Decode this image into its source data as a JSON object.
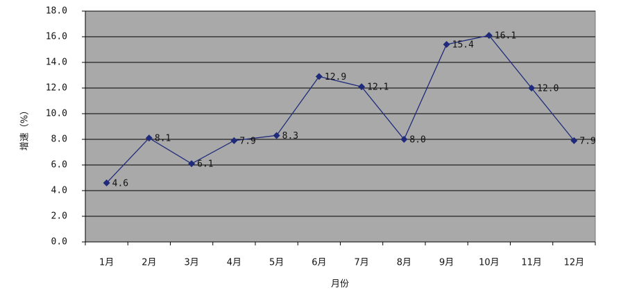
{
  "chart_data": {
    "type": "line",
    "xlabel": "月份",
    "ylabel": "增速（%）",
    "categories": [
      "1月",
      "2月",
      "3月",
      "4月",
      "5月",
      "6月",
      "7月",
      "8月",
      "9月",
      "10月",
      "11月",
      "12月"
    ],
    "values": [
      4.6,
      8.1,
      6.1,
      7.9,
      8.3,
      12.9,
      12.1,
      8,
      15.4,
      16.1,
      12,
      7.9
    ],
    "value_labels": [
      "4.6",
      "8.1",
      "6.1",
      "7.9",
      "8.3",
      "12.9",
      "12.1",
      "8.0",
      "15.4",
      "16.1",
      "12.0",
      "7.9"
    ],
    "color": "#1f2a7a",
    "plot_background": "#a9a9a9",
    "grid": true,
    "ylim": [
      0,
      18
    ],
    "yticks": [
      {
        "value": 0,
        "label": "0.0"
      },
      {
        "value": 2,
        "label": "2.0"
      },
      {
        "value": 4,
        "label": "4.0"
      },
      {
        "value": 6,
        "label": "6.0"
      },
      {
        "value": 8,
        "label": "8.0"
      },
      {
        "value": 10,
        "label": "10.0"
      },
      {
        "value": 12,
        "label": "12.0"
      },
      {
        "value": 14,
        "label": "14.0"
      },
      {
        "value": 16,
        "label": "16.0"
      },
      {
        "value": 18,
        "label": "18.0"
      }
    ]
  }
}
